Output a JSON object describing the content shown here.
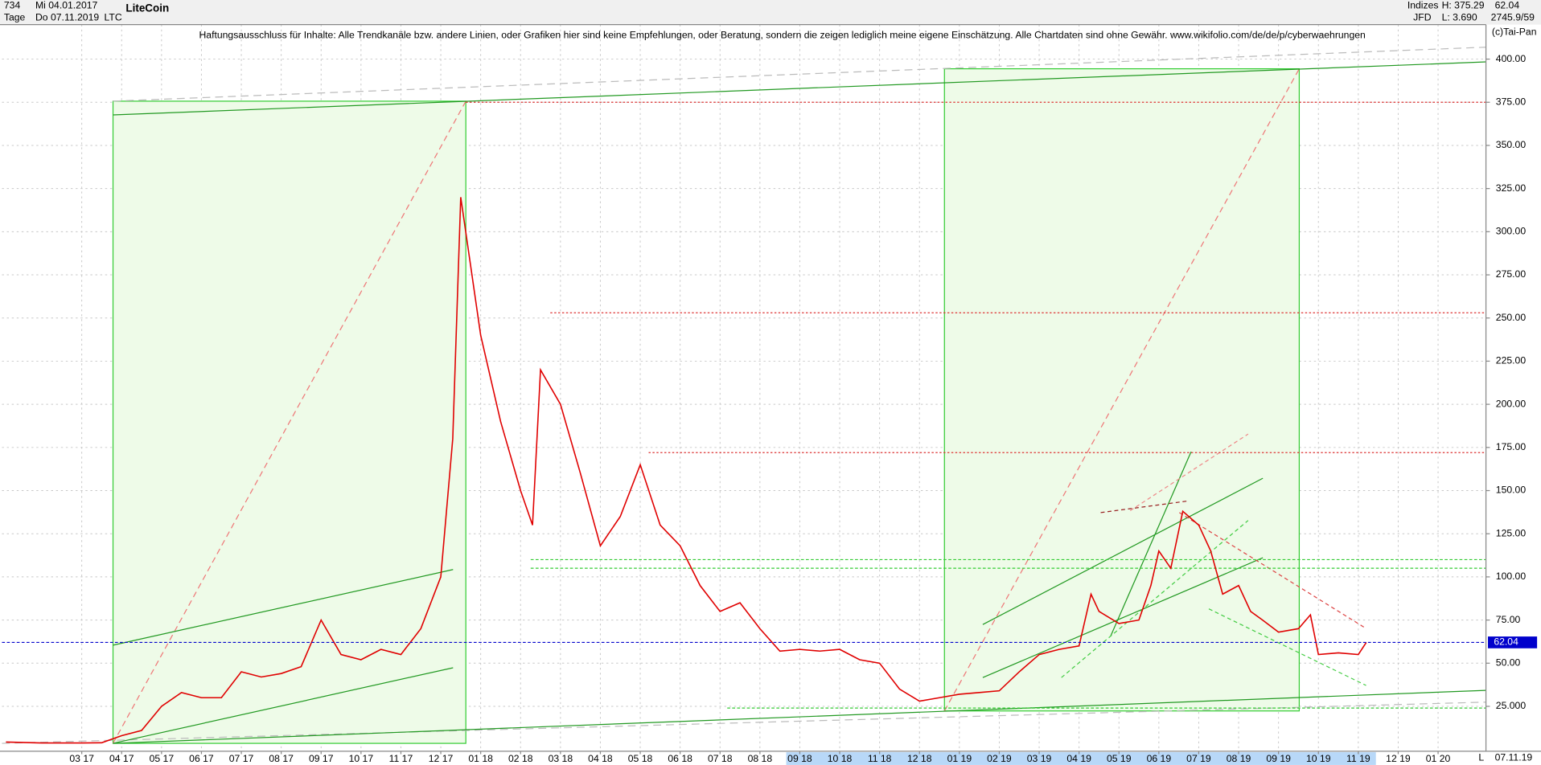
{
  "header": {
    "count": "734",
    "interval": "Tage",
    "start_date": "Mi 04.01.2017",
    "end_date": "Do 07.11.2019",
    "symbol": "LTC",
    "market": "Indizes",
    "exchange": "JFD",
    "high": "H: 375.29",
    "low": "L: 3.690",
    "last": "62.04",
    "info": "2745.9/59",
    "copyright": "(c)Tai-Pan",
    "end_axis_label": "L",
    "current_date": "07.11.19"
  },
  "chart_data": {
    "type": "line",
    "title": "LiteCoin",
    "annotation": "Haftungsausschluss für Inhalte: Alle Trendkanäle bzw. andere Linien, oder Grafiken hier sind keine Empfehlungen, oder Beratung, sondern die zeigen lediglich meine eigene Einschätzung. Alle Chartdaten sind ohne Gewähr.  www.wikifolio.com/de/de/p/cyberwaehrungen",
    "x": [
      0.1,
      1,
      2,
      2.5,
      3,
      3.5,
      4,
      4.5,
      5,
      5.5,
      6,
      6.5,
      7,
      7.5,
      8,
      8.5,
      9,
      9.5,
      10,
      10.5,
      11,
      11.3,
      11.5,
      12,
      12.5,
      13,
      13.3,
      13.5,
      14,
      14.5,
      15,
      15.5,
      16,
      16.5,
      17,
      17.5,
      18,
      18.5,
      19,
      19.5,
      20,
      20.5,
      21,
      21.5,
      22,
      22.5,
      23,
      23.5,
      24,
      24.5,
      25,
      25.5,
      26,
      26.5,
      27,
      27.3,
      27.5,
      28,
      28.5,
      28.8,
      29,
      29.3,
      29.6,
      30,
      30.3,
      30.6,
      31,
      31.3,
      31.6,
      32,
      32.5,
      32.8,
      33,
      33.5,
      34,
      34.2
    ],
    "series": [
      {
        "name": "LTC",
        "color": "#e00000",
        "values": [
          4.3,
          3.8,
          3.8,
          3.9,
          8,
          11,
          25,
          33,
          30,
          30,
          45,
          42,
          44,
          48,
          75,
          55,
          52,
          58,
          55,
          70,
          100,
          180,
          320,
          240,
          190,
          150,
          130,
          220,
          200,
          160,
          118,
          135,
          165,
          130,
          118,
          95,
          80,
          85,
          70,
          57,
          58,
          57,
          58,
          52,
          50,
          35,
          28,
          30,
          32,
          33,
          34,
          45,
          55,
          58,
          60,
          90,
          80,
          73,
          75,
          95,
          115,
          105,
          138,
          130,
          115,
          90,
          95,
          80,
          75,
          68,
          70,
          78,
          55,
          56,
          55,
          62.04
        ]
      }
    ],
    "xlim": [
      0,
      37.2
    ],
    "xticks": [
      {
        "value": 2,
        "label": "03 17"
      },
      {
        "value": 3,
        "label": "04 17"
      },
      {
        "value": 4,
        "label": "05 17"
      },
      {
        "value": 5,
        "label": "06 17"
      },
      {
        "value": 6,
        "label": "07 17"
      },
      {
        "value": 7,
        "label": "08 17"
      },
      {
        "value": 8,
        "label": "09 17"
      },
      {
        "value": 9,
        "label": "10 17"
      },
      {
        "value": 10,
        "label": "11 17"
      },
      {
        "value": 11,
        "label": "12 17"
      },
      {
        "value": 12,
        "label": "01 18"
      },
      {
        "value": 13,
        "label": "02 18"
      },
      {
        "value": 14,
        "label": "03 18"
      },
      {
        "value": 15,
        "label": "04 18"
      },
      {
        "value": 16,
        "label": "05 18"
      },
      {
        "value": 17,
        "label": "06 18"
      },
      {
        "value": 18,
        "label": "07 18"
      },
      {
        "value": 19,
        "label": "08 18"
      },
      {
        "value": 20,
        "label": "09 18"
      },
      {
        "value": 21,
        "label": "10 18"
      },
      {
        "value": 22,
        "label": "11 18"
      },
      {
        "value": 23,
        "label": "12 18"
      },
      {
        "value": 24,
        "label": "01 19"
      },
      {
        "value": 25,
        "label": "02 19"
      },
      {
        "value": 26,
        "label": "03 19"
      },
      {
        "value": 27,
        "label": "04 19"
      },
      {
        "value": 28,
        "label": "05 19"
      },
      {
        "value": 29,
        "label": "06 19"
      },
      {
        "value": 30,
        "label": "07 19"
      },
      {
        "value": 31,
        "label": "08 19"
      },
      {
        "value": 32,
        "label": "09 19"
      },
      {
        "value": 33,
        "label": "10 19"
      },
      {
        "value": 34,
        "label": "11 19"
      },
      {
        "value": 35,
        "label": "12 19"
      },
      {
        "value": 36,
        "label": "01 20"
      }
    ],
    "ylim": [
      -1,
      420
    ],
    "yticks": [
      {
        "value": 25,
        "label": "25.000"
      },
      {
        "value": 50,
        "label": "50.00"
      },
      {
        "value": 75,
        "label": "75.00"
      },
      {
        "value": 100,
        "label": "100.00"
      },
      {
        "value": 125,
        "label": "125.00"
      },
      {
        "value": 150,
        "label": "150.00"
      },
      {
        "value": 175,
        "label": "175.00"
      },
      {
        "value": 200,
        "label": "200.00"
      },
      {
        "value": 225,
        "label": "225.00"
      },
      {
        "value": 250,
        "label": "250.00"
      },
      {
        "value": 275,
        "label": "275.00"
      },
      {
        "value": 300,
        "label": "300.00"
      },
      {
        "value": 325,
        "label": "325.00"
      },
      {
        "value": 350,
        "label": "350.00"
      },
      {
        "value": 375,
        "label": "375.00"
      },
      {
        "value": 400,
        "label": "400.00"
      }
    ],
    "grid": true,
    "last_price": 62.04,
    "last_price_color": "#0000cc",
    "resistance_levels": [
      375,
      253,
      172
    ],
    "resistance_color": "#dd3333",
    "support_levels": [
      110,
      105,
      24
    ],
    "support_color": "#33cc33"
  }
}
